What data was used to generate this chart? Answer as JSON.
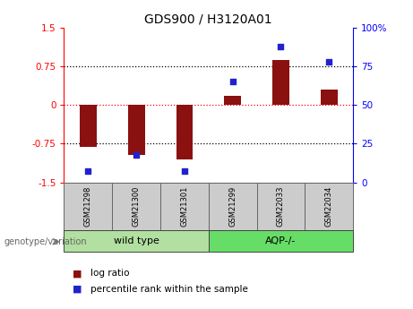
{
  "title": "GDS900 / H3120A01",
  "samples": [
    "GSM21298",
    "GSM21300",
    "GSM21301",
    "GSM21299",
    "GSM22033",
    "GSM22034"
  ],
  "log_ratio": [
    -0.82,
    -0.97,
    -1.05,
    0.18,
    0.88,
    0.3
  ],
  "percentile_rank": [
    7,
    18,
    7,
    65,
    88,
    78
  ],
  "groups": [
    {
      "label": "wild type",
      "start": 0,
      "end": 3,
      "color": "#b2e0a0"
    },
    {
      "label": "AQP-/-",
      "start": 3,
      "end": 6,
      "color": "#66dd66"
    }
  ],
  "group_label": "genotype/variation",
  "ylim_left": [
    -1.5,
    1.5
  ],
  "ylim_right": [
    0,
    100
  ],
  "yticks_left": [
    -1.5,
    -0.75,
    0,
    0.75,
    1.5
  ],
  "ytick_labels_left": [
    "-1.5",
    "-0.75",
    "0",
    "0.75",
    "1.5"
  ],
  "yticks_right": [
    0,
    25,
    50,
    75,
    100
  ],
  "ytick_labels_right": [
    "0",
    "25",
    "50",
    "75",
    "100%"
  ],
  "hlines": [
    -0.75,
    0.0,
    0.75
  ],
  "hline_colors": [
    "black",
    "red",
    "black"
  ],
  "bar_color": "#8B1010",
  "scatter_color": "#2222CC",
  "bar_width": 0.35,
  "legend_items": [
    {
      "color": "#8B1010",
      "label": "log ratio"
    },
    {
      "color": "#2222CC",
      "label": "percentile rank within the sample"
    }
  ],
  "sample_box_color": "#cccccc",
  "sample_box_edge": "#666666",
  "figsize": [
    4.61,
    3.45
  ],
  "dpi": 100
}
